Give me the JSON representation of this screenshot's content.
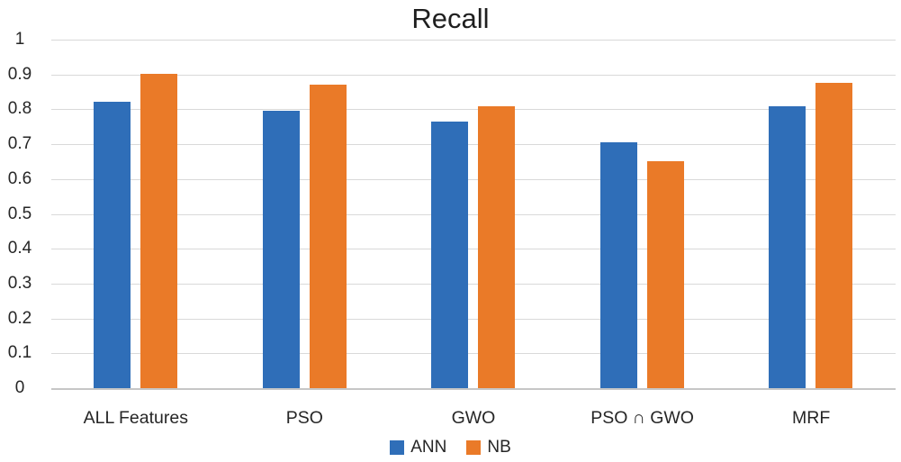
{
  "chart_data": {
    "type": "bar",
    "title": "Recall",
    "categories": [
      "ALL Features",
      "PSO",
      "GWO",
      "PSO ∩ GWO",
      "MRF"
    ],
    "series": [
      {
        "name": "ANN",
        "color": "#2f6eb8",
        "values": [
          0.822,
          0.795,
          0.765,
          0.705,
          0.81
        ]
      },
      {
        "name": "NB",
        "color": "#ea7a28",
        "values": [
          0.903,
          0.872,
          0.81,
          0.65,
          0.876
        ]
      }
    ],
    "xlabel": "",
    "ylabel": "",
    "ylim": [
      0,
      1
    ],
    "ytick_step": 0.1,
    "ytick_labels": [
      "1",
      "0.9",
      "0.8",
      "0.7",
      "0.6",
      "0.5",
      "0.4",
      "0.3",
      "0.2",
      "0.1",
      "0"
    ],
    "grid": true,
    "gridline_color": "#d9d9d9",
    "legend_position": "bottom"
  }
}
